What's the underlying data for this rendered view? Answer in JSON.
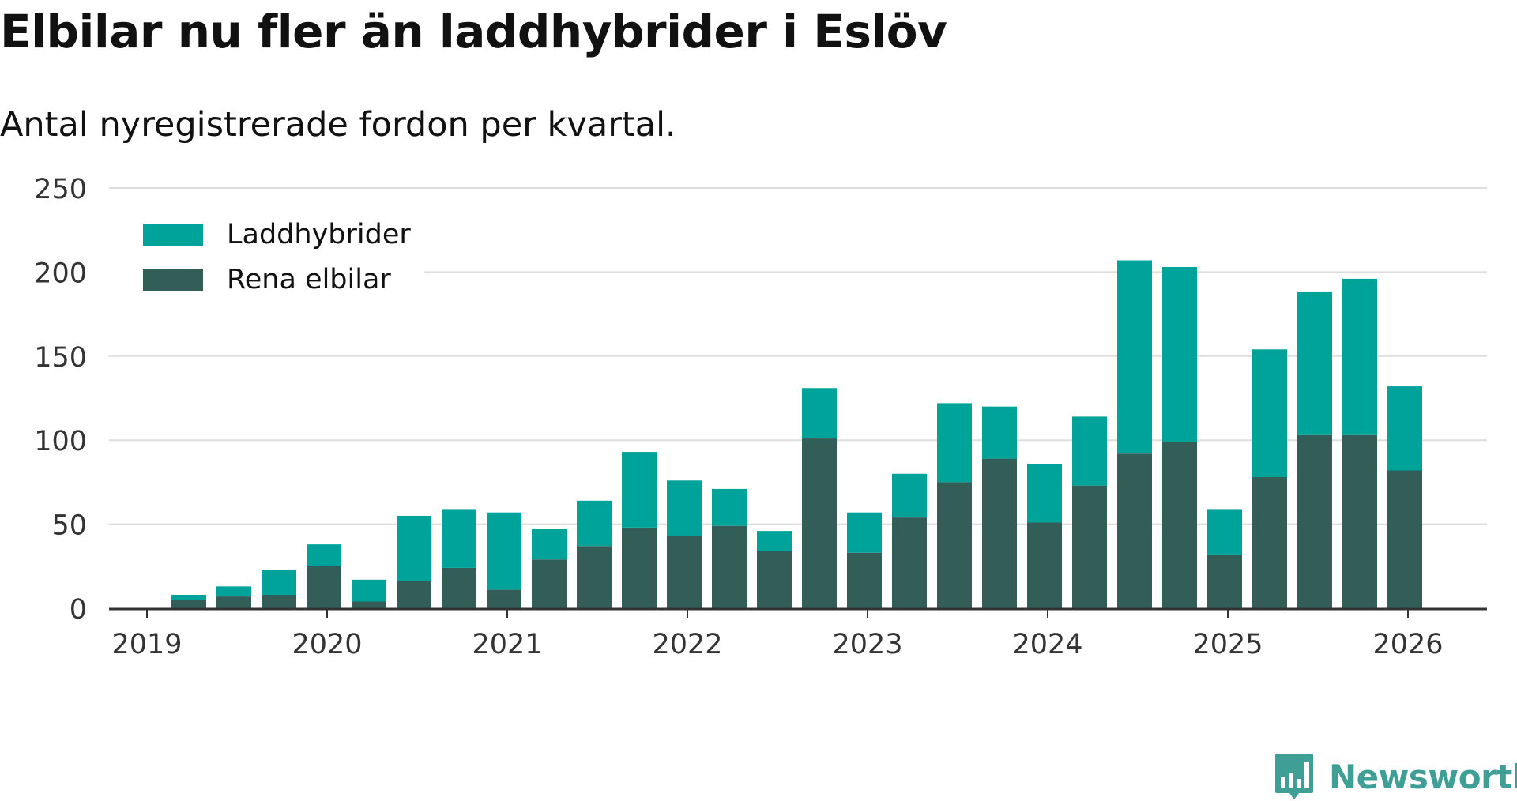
{
  "title": "Elbilar nu fler än laddhybrider i Eslöv",
  "subtitle": "Antal nyregistrerade fordon per kvartal.",
  "brand": "Newsworthy",
  "colors": {
    "laddhybrider": "#00a39a",
    "rena_elbilar": "#325e57",
    "grid": "#dddddd",
    "axis": "#333333"
  },
  "chart_data": {
    "type": "bar",
    "stacked": true,
    "ylim": [
      0,
      250
    ],
    "yticks": [
      0,
      50,
      100,
      150,
      200,
      250
    ],
    "xticks": [
      "2019",
      "2020",
      "2021",
      "2022",
      "2023",
      "2024",
      "2025",
      "2026"
    ],
    "legend_position": "top-left",
    "categories": [
      "2019 Q2",
      "2019 Q3",
      "2019 Q4",
      "2020 Q1",
      "2020 Q2",
      "2020 Q3",
      "2020 Q4",
      "2021 Q1",
      "2021 Q2",
      "2021 Q3",
      "2021 Q4",
      "2022 Q1",
      "2022 Q2",
      "2022 Q3",
      "2022 Q4",
      "2023 Q1",
      "2023 Q2",
      "2023 Q3",
      "2023 Q4",
      "2024 Q1",
      "2024 Q2",
      "2024 Q3",
      "2024 Q4",
      "2025 Q1",
      "2025 Q2",
      "2025 Q3",
      "2025 Q4",
      "2026 Q1"
    ],
    "series": [
      {
        "name": "Rena elbilar",
        "values": [
          5,
          7,
          8,
          25,
          4,
          16,
          24,
          11,
          29,
          37,
          48,
          43,
          49,
          34,
          101,
          33,
          54,
          75,
          89,
          51,
          73,
          92,
          99,
          32,
          78,
          103,
          103,
          82
        ]
      },
      {
        "name": "Laddhybrider",
        "values": [
          3,
          6,
          15,
          13,
          13,
          39,
          35,
          46,
          18,
          27,
          45,
          33,
          22,
          12,
          30,
          24,
          26,
          47,
          31,
          35,
          41,
          115,
          104,
          27,
          76,
          85,
          93,
          50
        ]
      }
    ]
  }
}
